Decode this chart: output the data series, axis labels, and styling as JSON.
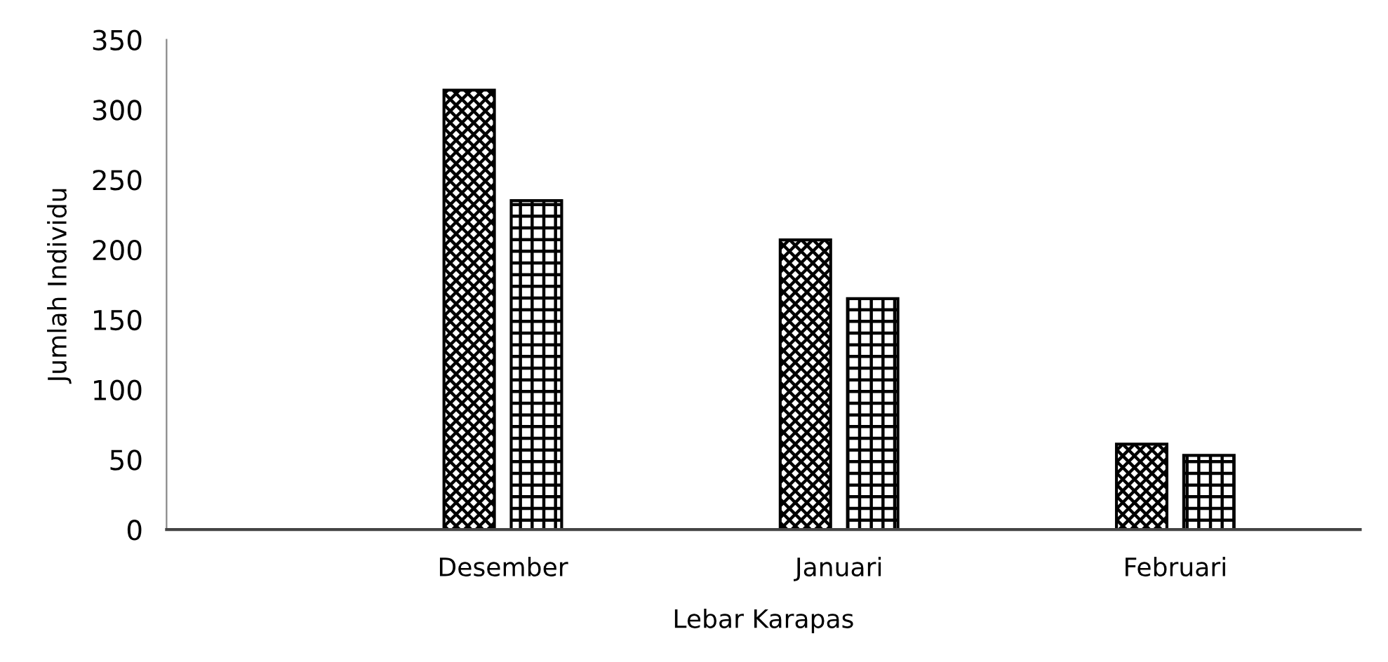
{
  "chart_data": {
    "type": "bar",
    "xlabel": "Lebar Karapas",
    "ylabel": "Jumlah Individu",
    "categories": [
      "Desember",
      "Januari",
      "Februari"
    ],
    "series": [
      {
        "color": "#000000",
        "values": [
          314,
          207,
          61
        ]
      },
      {
        "color": "#000000",
        "values": [
          235,
          165,
          53
        ]
      }
    ],
    "ylim": [
      0,
      350
    ],
    "yticks": [
      0,
      50,
      100,
      150,
      200,
      250,
      300,
      350
    ],
    "grid": false
  }
}
